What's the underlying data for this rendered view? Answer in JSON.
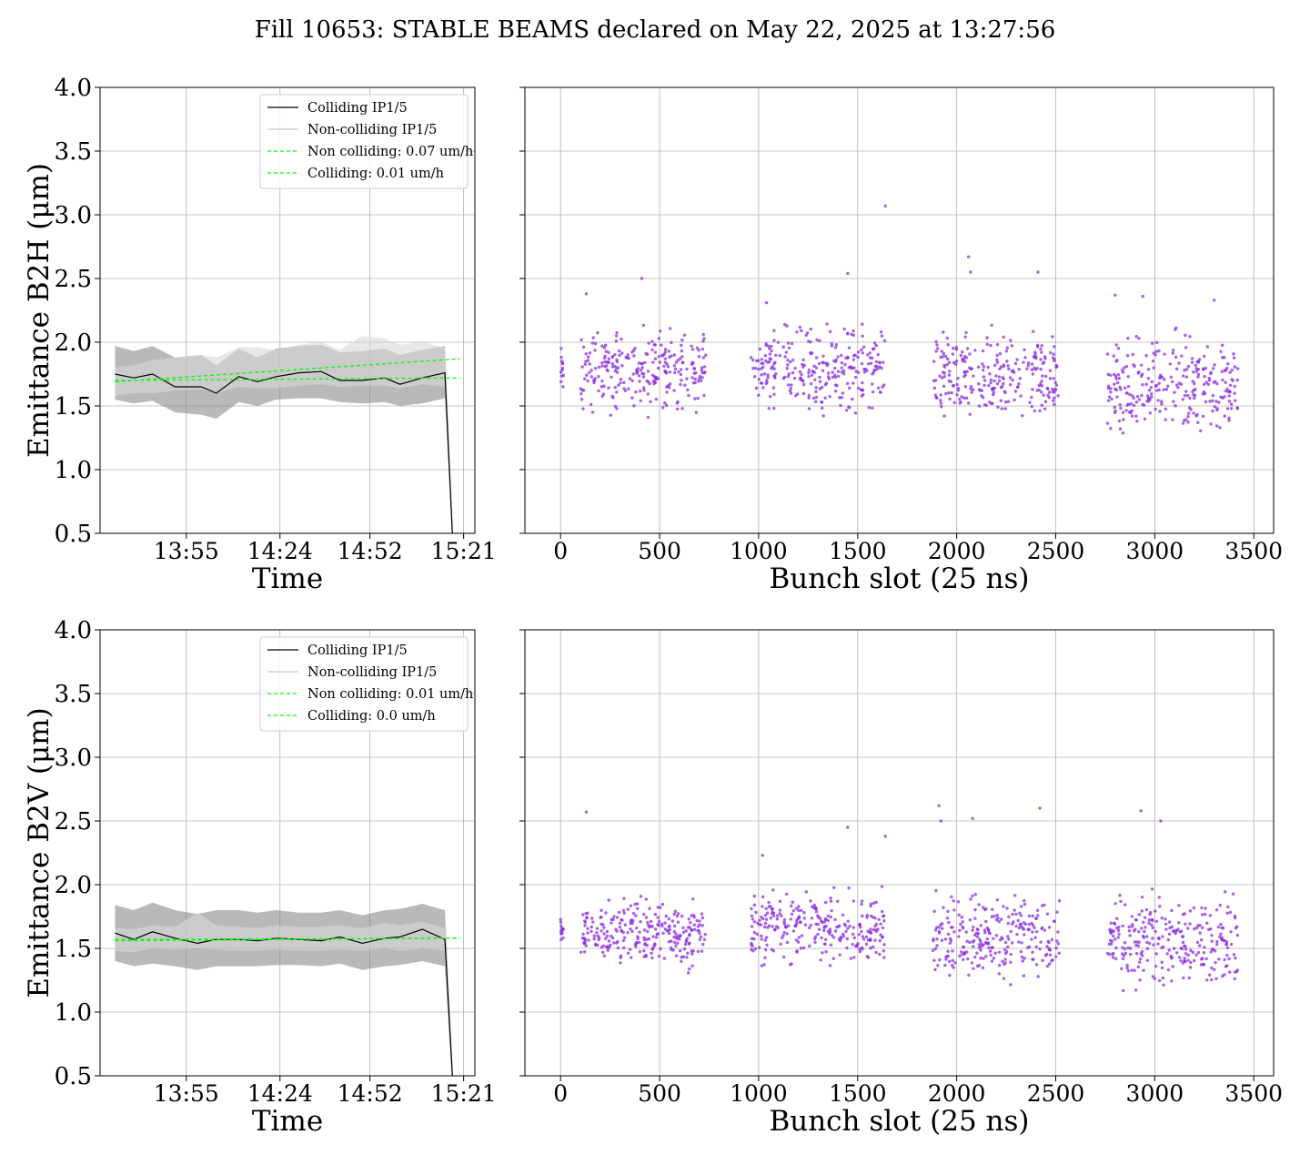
{
  "title": "Fill 10653: STABLE BEAMS declared on May 22, 2025 at 13:27:56",
  "colors": {
    "colliding": "#000000",
    "noncolliding": "#c8c8c8",
    "fit": "#00ff00",
    "band": "#808080",
    "points": "#8a2be2"
  },
  "chart_data": [
    {
      "type": "line",
      "panel": "top-left",
      "xlabel": "Time",
      "ylabel": "Emittance B2H (μm)",
      "ylim": [
        0.5,
        4.0
      ],
      "yticks": [
        "0.5",
        "1.0",
        "1.5",
        "2.0",
        "2.5",
        "3.0",
        "3.5",
        "4.0"
      ],
      "xlim": [
        0,
        100
      ],
      "xticks": [
        {
          "x": 23,
          "label": "13:55"
        },
        {
          "x": 48,
          "label": "14:24"
        },
        {
          "x": 72,
          "label": "14:52"
        },
        {
          "x": 97,
          "label": "15:21"
        }
      ],
      "grid": true,
      "legend_position": "top-right",
      "legend": [
        "Colliding IP1/5",
        "Non-colliding IP1/5",
        "Non colliding: 0.07 um/h",
        "Colliding: 0.01 um/h"
      ],
      "x": [
        4,
        9,
        14,
        20,
        27,
        31,
        37,
        42,
        47,
        53,
        59,
        64,
        70,
        76,
        80,
        86,
        92,
        94
      ],
      "colliding": [
        1.75,
        1.72,
        1.75,
        1.65,
        1.65,
        1.6,
        1.73,
        1.69,
        1.73,
        1.76,
        1.77,
        1.7,
        1.7,
        1.72,
        1.67,
        1.72,
        1.76,
        0.5
      ],
      "colliding_band": {
        "low": [
          1.55,
          1.52,
          1.54,
          1.45,
          1.43,
          1.4,
          1.53,
          1.5,
          1.55,
          1.56,
          1.56,
          1.53,
          1.52,
          1.53,
          1.5,
          1.52,
          1.56,
          0.4
        ],
        "high": [
          1.97,
          1.93,
          1.97,
          1.88,
          1.9,
          1.82,
          1.95,
          1.88,
          1.95,
          1.97,
          1.98,
          1.92,
          1.93,
          1.95,
          1.9,
          1.94,
          1.97,
          0.6
        ]
      },
      "noncolliding": [
        1.68,
        1.7,
        1.72,
        1.72,
        1.74,
        1.7,
        1.76,
        1.78,
        1.75,
        1.79,
        1.8,
        1.76,
        1.8,
        1.82,
        1.78,
        1.8,
        1.78,
        0.5
      ],
      "noncolliding_band": {
        "low": [
          1.58,
          1.6,
          1.6,
          1.62,
          1.63,
          1.6,
          1.65,
          1.64,
          1.64,
          1.66,
          1.67,
          1.65,
          1.66,
          1.66,
          1.64,
          1.67,
          1.65,
          0.4
        ],
        "high": [
          1.8,
          1.82,
          1.86,
          1.88,
          1.9,
          1.88,
          1.96,
          1.96,
          1.94,
          1.98,
          2.0,
          1.94,
          2.05,
          2.03,
          1.98,
          2.0,
          1.96,
          0.6
        ]
      },
      "fit_noncolliding": [
        [
          4,
          1.69
        ],
        [
          96,
          1.87
        ]
      ],
      "fit_colliding": [
        [
          4,
          1.7
        ],
        [
          96,
          1.72
        ]
      ]
    },
    {
      "type": "scatter",
      "panel": "top-right",
      "xlabel": "Bunch slot (25 ns)",
      "ylabel": "",
      "ylim": [
        0.5,
        4.0
      ],
      "xlim": [
        -180,
        3600
      ],
      "xticks": [
        "0",
        "500",
        "1000",
        "1500",
        "2000",
        "2500",
        "3000",
        "3500"
      ],
      "grid": true,
      "point_groups": [
        {
          "x_from": 0,
          "x_to": 15,
          "y_mean": 1.75,
          "y_spread": 0.15,
          "count": 12
        },
        {
          "x_from": 100,
          "x_to": 740,
          "y_mean": 1.78,
          "y_spread": 0.22,
          "count": 260
        },
        {
          "x_from": 960,
          "x_to": 1640,
          "y_mean": 1.8,
          "y_spread": 0.22,
          "count": 270
        },
        {
          "x_from": 1880,
          "x_to": 2520,
          "y_mean": 1.72,
          "y_spread": 0.24,
          "count": 260
        },
        {
          "x_from": 2760,
          "x_to": 3420,
          "y_mean": 1.66,
          "y_spread": 0.26,
          "count": 270
        }
      ],
      "outliers": [
        [
          1640,
          3.07
        ],
        [
          2060,
          2.67
        ],
        [
          2070,
          2.55
        ],
        [
          2410,
          2.55
        ],
        [
          1450,
          2.54
        ],
        [
          410,
          2.5
        ],
        [
          130,
          2.38
        ],
        [
          2800,
          2.37
        ],
        [
          2940,
          2.36
        ],
        [
          1040,
          2.31
        ],
        [
          3300,
          2.33
        ]
      ]
    },
    {
      "type": "line",
      "panel": "bottom-left",
      "xlabel": "Time",
      "ylabel": "Emittance B2V (μm)",
      "ylim": [
        0.5,
        4.0
      ],
      "yticks": [
        "0.5",
        "1.0",
        "1.5",
        "2.0",
        "2.5",
        "3.0",
        "3.5",
        "4.0"
      ],
      "xlim": [
        0,
        100
      ],
      "xticks": [
        {
          "x": 23,
          "label": "13:55"
        },
        {
          "x": 48,
          "label": "14:24"
        },
        {
          "x": 72,
          "label": "14:52"
        },
        {
          "x": 97,
          "label": "15:21"
        }
      ],
      "grid": true,
      "legend_position": "top-right",
      "legend": [
        "Colliding IP1/5",
        "Non-colliding IP1/5",
        "Non colliding: 0.01 um/h",
        "Colliding: 0.0 um/h"
      ],
      "x": [
        4,
        9,
        14,
        20,
        26,
        31,
        37,
        42,
        47,
        53,
        59,
        64,
        70,
        76,
        80,
        86,
        92,
        94
      ],
      "colliding": [
        1.62,
        1.57,
        1.63,
        1.58,
        1.54,
        1.57,
        1.57,
        1.56,
        1.58,
        1.57,
        1.56,
        1.59,
        1.54,
        1.58,
        1.59,
        1.65,
        1.57,
        0.5
      ],
      "colliding_band": {
        "low": [
          1.4,
          1.36,
          1.38,
          1.36,
          1.33,
          1.36,
          1.36,
          1.36,
          1.37,
          1.37,
          1.36,
          1.38,
          1.33,
          1.36,
          1.37,
          1.4,
          1.36,
          0.4
        ],
        "high": [
          1.84,
          1.8,
          1.86,
          1.8,
          1.77,
          1.8,
          1.8,
          1.78,
          1.8,
          1.78,
          1.78,
          1.8,
          1.76,
          1.8,
          1.81,
          1.85,
          1.8,
          0.6
        ]
      },
      "noncolliding": [
        1.56,
        1.55,
        1.58,
        1.57,
        1.6,
        1.57,
        1.57,
        1.56,
        1.58,
        1.57,
        1.57,
        1.58,
        1.56,
        1.59,
        1.57,
        1.6,
        1.57,
        0.5
      ],
      "noncolliding_band": {
        "low": [
          1.48,
          1.47,
          1.5,
          1.49,
          1.5,
          1.49,
          1.48,
          1.48,
          1.49,
          1.48,
          1.48,
          1.49,
          1.48,
          1.5,
          1.48,
          1.5,
          1.48,
          0.4
        ],
        "high": [
          1.66,
          1.65,
          1.68,
          1.67,
          1.78,
          1.68,
          1.67,
          1.66,
          1.68,
          1.67,
          1.67,
          1.68,
          1.66,
          1.7,
          1.68,
          1.71,
          1.66,
          0.6
        ]
      },
      "fit_noncolliding": [
        [
          4,
          1.56
        ],
        [
          96,
          1.58
        ]
      ],
      "fit_colliding": [
        [
          4,
          1.57
        ],
        [
          96,
          1.58
        ]
      ]
    },
    {
      "type": "scatter",
      "panel": "bottom-right",
      "xlabel": "Bunch slot (25 ns)",
      "ylabel": "",
      "ylim": [
        0.5,
        4.0
      ],
      "xlim": [
        -180,
        3600
      ],
      "xticks": [
        "0",
        "500",
        "1000",
        "1500",
        "2000",
        "2500",
        "3000",
        "3500"
      ],
      "grid": true,
      "point_groups": [
        {
          "x_from": 0,
          "x_to": 15,
          "y_mean": 1.66,
          "y_spread": 0.08,
          "count": 12
        },
        {
          "x_from": 100,
          "x_to": 740,
          "y_mean": 1.62,
          "y_spread": 0.18,
          "count": 260
        },
        {
          "x_from": 960,
          "x_to": 1640,
          "y_mean": 1.66,
          "y_spread": 0.2,
          "count": 270
        },
        {
          "x_from": 1880,
          "x_to": 2520,
          "y_mean": 1.6,
          "y_spread": 0.22,
          "count": 260
        },
        {
          "x_from": 2760,
          "x_to": 3420,
          "y_mean": 1.55,
          "y_spread": 0.24,
          "count": 270
        }
      ],
      "outliers": [
        [
          130,
          2.57
        ],
        [
          1910,
          2.62
        ],
        [
          1920,
          2.5
        ],
        [
          2080,
          2.52
        ],
        [
          2420,
          2.6
        ],
        [
          2930,
          2.58
        ],
        [
          3030,
          2.5
        ],
        [
          1450,
          2.45
        ],
        [
          1640,
          2.38
        ],
        [
          1020,
          2.23
        ]
      ]
    }
  ]
}
